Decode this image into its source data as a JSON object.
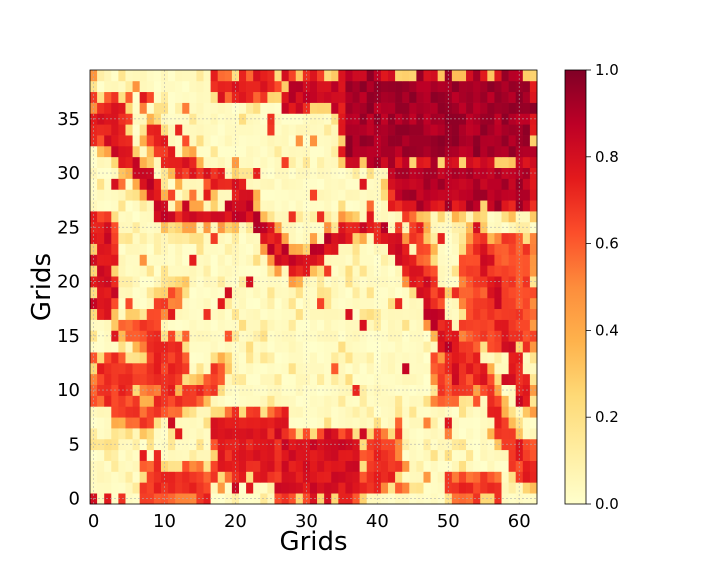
{
  "chart_data": {
    "type": "heatmap",
    "title": "",
    "xlabel": "Grids",
    "ylabel": "Grids",
    "grid": true,
    "colormap": "YlOrRd",
    "colormap_stops": [
      "#ffffcc",
      "#ffeda0",
      "#fed976",
      "#feb24c",
      "#fd8d3c",
      "#fc4e2a",
      "#e31a1c",
      "#bd0026",
      "#800026"
    ],
    "value_range": [
      0,
      1
    ],
    "nx": 63,
    "ny": 40,
    "xlim": [
      -0.5,
      62.5
    ],
    "ylim": [
      -0.5,
      39.5
    ],
    "x_ticks": [
      0,
      10,
      20,
      30,
      40,
      50,
      60
    ],
    "x_tick_labels": [
      "0",
      "10",
      "20",
      "30",
      "40",
      "50",
      "60"
    ],
    "y_ticks": [
      0,
      5,
      10,
      15,
      20,
      25,
      30,
      35
    ],
    "y_tick_labels": [
      "0",
      "5",
      "10",
      "15",
      "20",
      "25",
      "30",
      "35"
    ],
    "colorbar": {
      "ticks": [
        0.0,
        0.2,
        0.4,
        0.6,
        0.8,
        1.0
      ],
      "tick_labels": [
        "0.0",
        "0.2",
        "0.4",
        "0.6",
        "0.8",
        "1.0"
      ],
      "placement": "right"
    },
    "high_regions": [
      {
        "shape": "rect",
        "x0": 35,
        "x1": 62,
        "y0": 31,
        "y1": 39,
        "v": 0.98
      },
      {
        "shape": "rect",
        "x0": 42,
        "x1": 62,
        "y0": 27,
        "y1": 31,
        "v": 0.95
      },
      {
        "shape": "rect",
        "x0": 27,
        "x1": 35,
        "y0": 36,
        "y1": 39,
        "v": 0.9
      },
      {
        "shape": "rect",
        "x0": 17,
        "x1": 26,
        "y0": 37,
        "y1": 39,
        "v": 0.8
      },
      {
        "shape": "rect",
        "x0": 26,
        "x1": 38,
        "y0": 0,
        "y1": 6,
        "v": 0.85
      },
      {
        "shape": "rect",
        "x0": 17,
        "x1": 27,
        "y0": 2,
        "y1": 8,
        "v": 0.8
      },
      {
        "shape": "rect",
        "x0": 38,
        "x1": 43,
        "y0": 1,
        "y1": 6,
        "v": 0.75
      },
      {
        "shape": "rect",
        "x0": 7,
        "x1": 16,
        "y0": 0,
        "y1": 3,
        "v": 0.75
      },
      {
        "shape": "rect",
        "x0": 0,
        "x1": 3,
        "y0": 17,
        "y1": 26,
        "v": 0.85
      },
      {
        "shape": "rect",
        "x0": 0,
        "x1": 5,
        "y0": 33,
        "y1": 37,
        "v": 0.8
      },
      {
        "shape": "rect",
        "x0": 0,
        "x1": 6,
        "y0": 9,
        "y1": 13,
        "v": 0.75
      },
      {
        "shape": "rect",
        "x0": 7,
        "x1": 13,
        "y0": 10,
        "y1": 15,
        "v": 0.75
      },
      {
        "shape": "rect",
        "x0": 52,
        "x1": 62,
        "y0": 14,
        "y1": 24,
        "v": 0.7
      },
      {
        "shape": "rect",
        "x0": 50,
        "x1": 57,
        "y0": 0,
        "y1": 2,
        "v": 0.75
      },
      {
        "shape": "rect",
        "x0": 59,
        "x1": 62,
        "y0": 2,
        "y1": 5,
        "v": 0.7
      },
      {
        "shape": "rect",
        "x0": 48,
        "x1": 54,
        "y0": 9,
        "y1": 13,
        "v": 0.7
      }
    ],
    "ridges": [
      {
        "points": [
          [
            0,
            35
          ],
          [
            4,
            32
          ],
          [
            8,
            29
          ],
          [
            10,
            26
          ],
          [
            14,
            26
          ],
          [
            18,
            26
          ],
          [
            21,
            27
          ],
          [
            25,
            24
          ],
          [
            28,
            21.5
          ],
          [
            31,
            22
          ],
          [
            34,
            24
          ],
          [
            37,
            25
          ],
          [
            40,
            25
          ],
          [
            43,
            23
          ],
          [
            46,
            20
          ],
          [
            48,
            17
          ],
          [
            50,
            14
          ],
          [
            51,
            11
          ]
        ],
        "v": 0.9
      },
      {
        "points": [
          [
            8,
            34
          ],
          [
            11,
            31
          ],
          [
            15,
            30
          ],
          [
            19,
            29
          ],
          [
            22,
            28
          ]
        ],
        "v": 0.8
      },
      {
        "points": [
          [
            42,
            29
          ],
          [
            46,
            27
          ],
          [
            50,
            27
          ],
          [
            54,
            28
          ],
          [
            58,
            28
          ],
          [
            62,
            27
          ]
        ],
        "v": 0.85
      },
      {
        "points": [
          [
            54,
            25
          ],
          [
            56,
            20
          ],
          [
            58,
            16
          ],
          [
            59,
            13
          ],
          [
            61,
            9
          ]
        ],
        "v": 0.85
      },
      {
        "points": [
          [
            49,
            16
          ],
          [
            53,
            13
          ],
          [
            56,
            10
          ],
          [
            57,
            7
          ],
          [
            60,
            4
          ],
          [
            62,
            2
          ]
        ],
        "v": 0.8
      },
      {
        "points": [
          [
            3,
            9
          ],
          [
            6,
            7
          ],
          [
            9,
            8
          ],
          [
            13,
            9
          ],
          [
            16,
            10
          ],
          [
            18,
            12
          ]
        ],
        "v": 0.75
      },
      {
        "points": [
          [
            4,
            16
          ],
          [
            7,
            15
          ],
          [
            9,
            17
          ],
          [
            12,
            19
          ]
        ],
        "v": 0.7
      },
      {
        "points": [
          [
            44,
            27
          ],
          [
            46,
            24
          ],
          [
            47,
            21
          ],
          [
            49,
            18
          ]
        ],
        "v": 0.75
      }
    ]
  }
}
